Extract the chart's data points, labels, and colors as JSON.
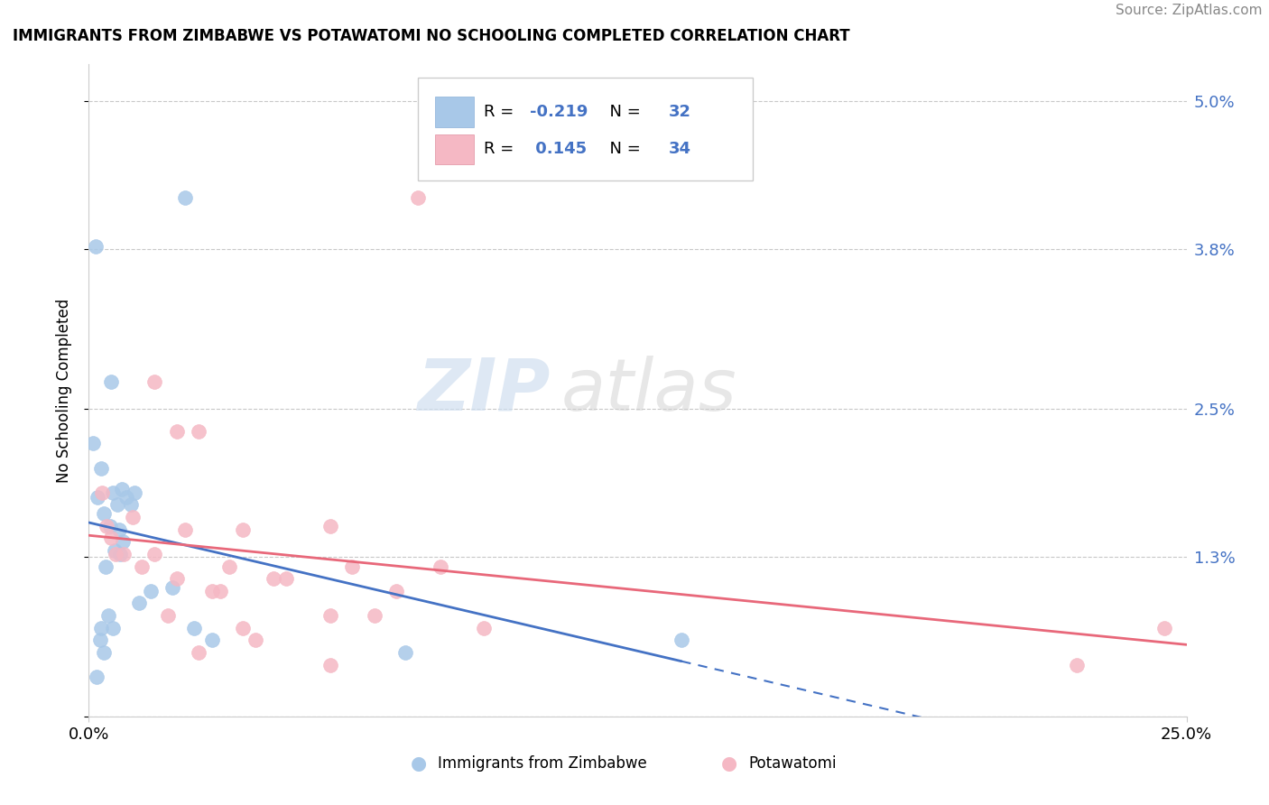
{
  "title": "IMMIGRANTS FROM ZIMBABWE VS POTAWATOMI NO SCHOOLING COMPLETED CORRELATION CHART",
  "source": "Source: ZipAtlas.com",
  "ylabel": "No Schooling Completed",
  "xlim": [
    0.0,
    25.0
  ],
  "ylim": [
    0.0,
    5.3
  ],
  "yticks": [
    0.0,
    1.3,
    2.5,
    3.8,
    5.0
  ],
  "ytick_labels": [
    "",
    "1.3%",
    "2.5%",
    "3.8%",
    "5.0%"
  ],
  "blue_R": "-0.219",
  "blue_N": "32",
  "pink_R": "0.145",
  "pink_N": "34",
  "blue_color": "#a8c8e8",
  "pink_color": "#f5b8c4",
  "blue_line_color": "#4472c4",
  "pink_line_color": "#e8687a",
  "label_blue": "Immigrants from Zimbabwe",
  "label_pink": "Potawatomi",
  "watermark_zip": "ZIP",
  "watermark_atlas": "atlas",
  "blue_scatter_x": [
    0.15,
    0.5,
    2.2,
    0.1,
    0.2,
    0.35,
    0.55,
    0.65,
    0.75,
    0.85,
    0.95,
    1.05,
    0.28,
    0.48,
    0.68,
    0.78,
    0.58,
    0.38,
    1.4,
    1.9,
    1.15,
    0.25,
    0.72,
    0.45,
    0.55,
    2.4,
    2.8,
    0.35,
    0.18,
    7.2,
    0.28,
    13.5
  ],
  "blue_scatter_y": [
    3.82,
    2.72,
    4.22,
    2.22,
    1.78,
    1.65,
    1.82,
    1.72,
    1.85,
    1.78,
    1.72,
    1.82,
    2.02,
    1.55,
    1.52,
    1.42,
    1.35,
    1.22,
    1.02,
    1.05,
    0.92,
    0.62,
    1.32,
    0.82,
    0.72,
    0.72,
    0.62,
    0.52,
    0.32,
    0.52,
    0.72,
    0.62
  ],
  "pink_scatter_x": [
    0.3,
    1.5,
    2.0,
    2.5,
    3.5,
    5.5,
    0.5,
    1.0,
    1.5,
    2.0,
    3.0,
    4.5,
    5.5,
    6.5,
    7.0,
    8.0,
    2.5,
    3.5,
    0.4,
    0.6,
    1.2,
    1.8,
    2.8,
    3.8,
    5.5,
    7.5,
    0.8,
    2.2,
    3.2,
    4.2,
    6.0,
    9.0,
    22.5,
    24.5
  ],
  "pink_scatter_y": [
    1.82,
    2.72,
    2.32,
    2.32,
    1.52,
    1.55,
    1.45,
    1.62,
    1.32,
    1.12,
    1.02,
    1.12,
    0.82,
    0.82,
    1.02,
    1.22,
    0.52,
    0.72,
    1.55,
    1.32,
    1.22,
    0.82,
    1.02,
    0.62,
    0.42,
    4.22,
    1.32,
    1.52,
    1.22,
    1.12,
    1.22,
    0.72,
    0.42,
    0.72
  ],
  "blue_line_start_x": 0.0,
  "blue_line_end_x": 25.0,
  "pink_line_start_x": 0.0,
  "pink_line_end_x": 25.0
}
